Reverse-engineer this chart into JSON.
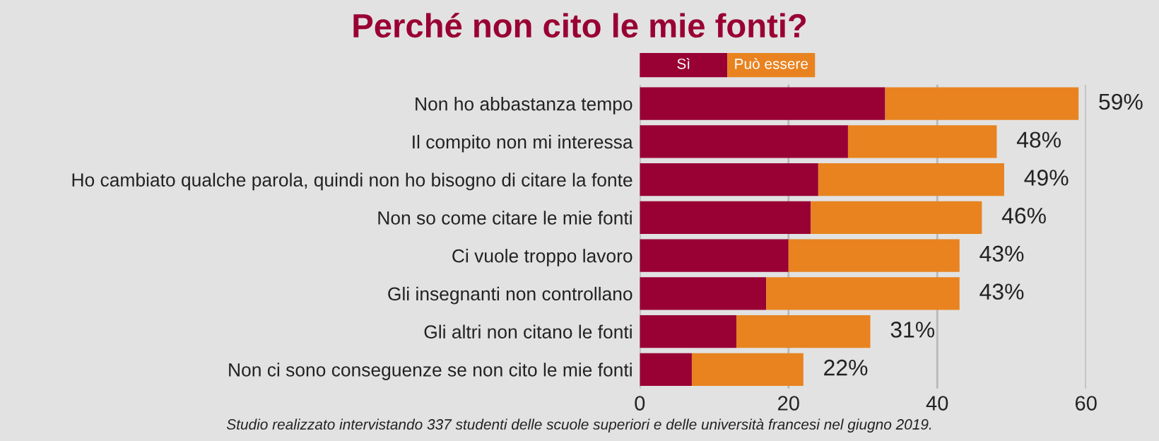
{
  "chart_data": {
    "type": "bar",
    "orientation": "horizontal",
    "stacked": true,
    "title": "Perché non cito le mie fonti?",
    "categories": [
      "Non ho abbastanza tempo",
      "Il compito non mi interessa",
      "Ho cambiato qualche parola, quindi non ho bisogno di citare la fonte",
      "Non so come citare le mie fonti",
      "Ci vuole troppo lavoro",
      "Gli insegnanti non controllano",
      "Gli altri non citano le fonti",
      "Non ci sono conseguenze se non cito le mie fonti"
    ],
    "series": [
      {
        "name": "Sì",
        "color": "#990033",
        "values": [
          33,
          28,
          24,
          23,
          20,
          17,
          13,
          7
        ]
      },
      {
        "name": "Può essere",
        "color": "#e88320",
        "values": [
          26,
          20,
          25,
          23,
          23,
          26,
          18,
          15
        ]
      }
    ],
    "totals": [
      "59%",
      "48%",
      "49%",
      "46%",
      "43%",
      "43%",
      "31%",
      "22%"
    ],
    "xlim": [
      0,
      60
    ],
    "xticks": [
      0,
      20,
      40,
      60
    ],
    "grid": "x",
    "legend": "top",
    "annotations": [
      "Studio realizzato intervistando 337 studenti delle scuole superiori e delle università francesi nel giugno 2019."
    ]
  }
}
